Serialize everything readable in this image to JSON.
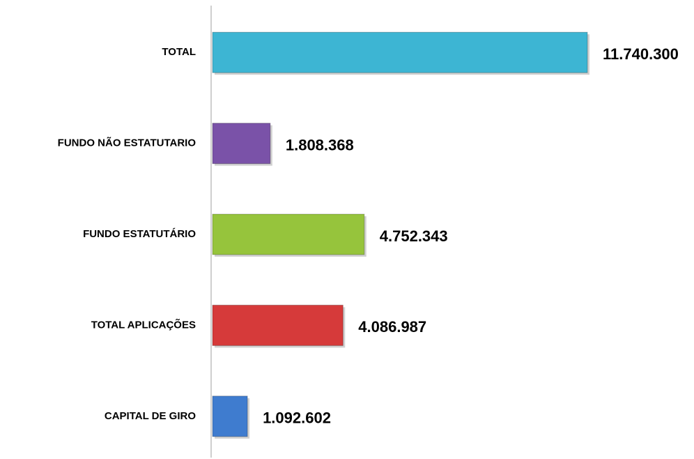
{
  "chart_data": {
    "type": "barh",
    "categories": [
      "TOTAL",
      "FUNDO NÃO ESTATUTARIO",
      "FUNDO ESTATUTÁRIO",
      "TOTAL APLICAÇÕES",
      "CAPITAL DE GIRO"
    ],
    "values": [
      11740300,
      1808368,
      4752343,
      4086987,
      1092602
    ],
    "value_labels": [
      "11.740.300",
      "1.808.368",
      "4.752.343",
      "4.086.987",
      "1.092.602"
    ],
    "colors": [
      "#3db5d3",
      "#7a52a8",
      "#96c43c",
      "#d63a3a",
      "#3f7ccf"
    ]
  }
}
